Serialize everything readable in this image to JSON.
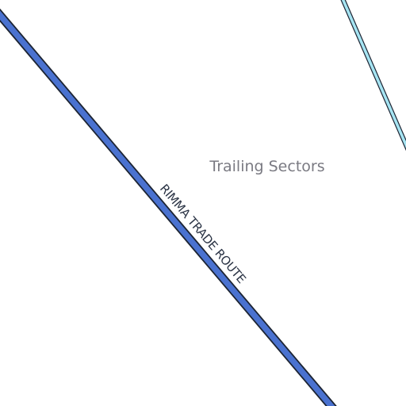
{
  "map": {
    "colors": {
      "background": "#ffffff",
      "trade_route_fill": "#4a72d0",
      "trade_route_casing": "#1c2433",
      "hyperlane_fill": "#a6e4f2",
      "hyperlane_casing": "#1c2433",
      "region_label": "#7a7a82",
      "route_label": "#2b3445"
    },
    "regions": [
      {
        "name": "Trailing Sectors"
      }
    ],
    "routes": [
      {
        "name": "RIMMA TRADE ROUTE",
        "kind": "trade-route"
      },
      {
        "name": "",
        "kind": "hyperlane"
      }
    ]
  }
}
